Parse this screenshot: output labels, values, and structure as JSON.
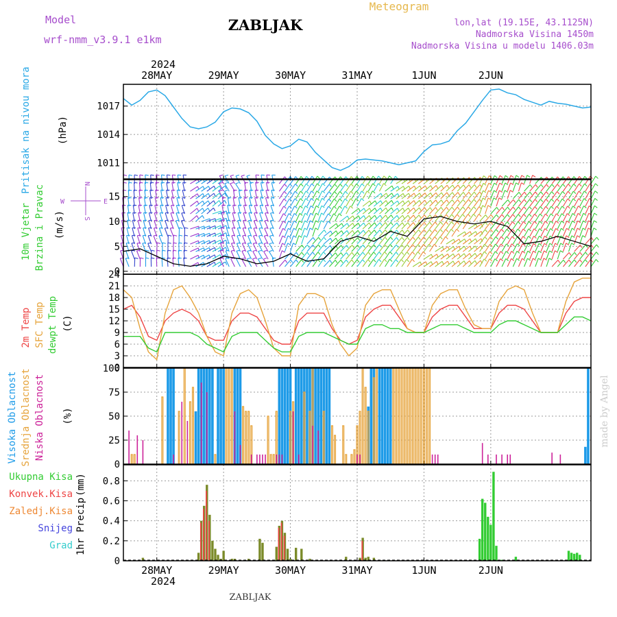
{
  "header": {
    "model_label": "Model",
    "model_name": "wrf-nmm_v3.9.1 e1km",
    "station": "ZABLJAK",
    "meteogram": "Meteogram",
    "coords": "lon,lat (19.15E, 43.1125N)",
    "elevation": "Nadmorska Visina 1450m",
    "model_elevation": "Nadmorska Visina u modelu 1406.03m",
    "year_top": "2024",
    "year_bottom": "2024",
    "footer": "ZABLJAK",
    "watermark": "made by Angel"
  },
  "colors": {
    "pressure": "#29a8e6",
    "precip_total": "#33cc33",
    "precip_conv": "#ee4444",
    "precip_frozen": "#ee8833",
    "precip_snow": "#4444dd",
    "precip_hail": "#33cccc",
    "temp2m": "#ee4444",
    "tsfc": "#e6a33a",
    "dewpt": "#33cc33",
    "cloud_high": "#1e9be8",
    "cloud_mid": "#e6a33a",
    "cloud_low": "#cc2299",
    "purple": "#a64dcc"
  },
  "chart_data": [
    {
      "id": "pressure",
      "type": "line",
      "ylabel": "Pritisak na nivou mora",
      "unit": "(hPa)",
      "yticks": [
        1011,
        1014,
        1017
      ],
      "ylim": [
        1009.3,
        1019.3
      ],
      "x_dates": [
        "28MAY",
        "29MAY",
        "30MAY",
        "31MAY",
        "1JUN",
        "2JUN"
      ],
      "series": [
        {
          "x": [
            0,
            3,
            6,
            9,
            12,
            15,
            18,
            21,
            24,
            27,
            30,
            33,
            36,
            39,
            42,
            45,
            48,
            51,
            54,
            57,
            60,
            63,
            66,
            69,
            72,
            75,
            78,
            81,
            84,
            87,
            90,
            93,
            96,
            99,
            102,
            105,
            108,
            111,
            114,
            117,
            120,
            123,
            126,
            129,
            132,
            135,
            138,
            141,
            144,
            147,
            150,
            153,
            156,
            159,
            162,
            165,
            168
          ],
          "y": [
            1017.8,
            1017.1,
            1017.6,
            1018.5,
            1018.7,
            1018.1,
            1016.9,
            1015.7,
            1014.8,
            1014.6,
            1014.8,
            1015.3,
            1016.4,
            1016.8,
            1016.7,
            1016.3,
            1015.4,
            1013.9,
            1013.0,
            1012.5,
            1012.8,
            1013.5,
            1013.2,
            1012.1,
            1011.3,
            1010.5,
            1010.2,
            1010.6,
            1011.3,
            1011.4,
            1011.3,
            1011.2,
            1011.0,
            1010.8,
            1011.0,
            1011.2,
            1012.2,
            1012.9,
            1013.0,
            1013.3,
            1014.4,
            1015.2,
            1016.4,
            1017.6,
            1018.7,
            1018.8,
            1018.4,
            1018.2,
            1017.7,
            1017.4,
            1017.1,
            1017.5,
            1017.3,
            1017.2,
            1017.0,
            1016.8,
            1016.9
          ]
        }
      ]
    },
    {
      "id": "wind",
      "type": "line",
      "ylabel": "10m Vjetar Brzina i Pravac",
      "unit": "(m/s)",
      "compass": {
        "n": "N",
        "w": "W",
        "e": "E",
        "s": "S"
      },
      "yticks": [
        0,
        5,
        10,
        15
      ],
      "ylim": [
        -0.6,
        18.4
      ],
      "series": [
        {
          "name": "speed",
          "x": [
            0,
            6,
            12,
            18,
            24,
            30,
            36,
            42,
            48,
            54,
            60,
            66,
            72,
            78,
            84,
            90,
            96,
            102,
            108,
            114,
            120,
            126,
            132,
            138,
            144,
            150,
            156,
            162,
            168
          ],
          "y": [
            4,
            4.5,
            3,
            1.5,
            1,
            1.5,
            3,
            2.5,
            1.5,
            2,
            3.5,
            2,
            2.5,
            6,
            7,
            6,
            8,
            7,
            10.5,
            11,
            10,
            9.5,
            10,
            9,
            5.5,
            6,
            7,
            6,
            5
          ]
        }
      ]
    },
    {
      "id": "temperature",
      "type": "line",
      "ylabel_lines": [
        "2m Temp",
        "SFC Temp",
        "dewpt Temp"
      ],
      "unit": "(C)",
      "yticks": [
        0,
        3,
        6,
        9,
        12,
        15,
        18,
        21,
        24
      ],
      "ylim": [
        0,
        24
      ],
      "x": [
        0,
        3,
        6,
        9,
        12,
        15,
        18,
        21,
        24,
        27,
        30,
        33,
        36,
        39,
        42,
        45,
        48,
        51,
        54,
        57,
        60,
        63,
        66,
        69,
        72,
        75,
        78,
        81,
        84,
        87,
        90,
        93,
        96,
        99,
        102,
        105,
        108,
        111,
        114,
        117,
        120,
        123,
        126,
        129,
        132,
        135,
        138,
        141,
        144,
        147,
        150,
        153,
        156,
        159,
        162,
        165,
        168
      ],
      "series": [
        {
          "name": "2m Temp",
          "y": [
            15,
            16,
            13,
            8,
            7,
            12,
            14,
            15,
            14,
            12,
            8,
            7,
            7,
            12,
            14,
            14,
            13,
            10,
            7,
            6,
            6,
            12,
            14,
            14,
            14,
            10,
            7,
            6,
            7,
            13,
            15,
            16,
            16,
            13,
            10,
            9,
            9,
            13,
            15,
            16,
            16,
            13,
            10,
            10,
            10,
            14,
            16,
            16,
            15,
            12,
            9,
            9,
            9,
            14,
            17,
            18,
            18
          ]
        },
        {
          "name": "SFC Temp",
          "y": [
            20,
            18,
            10,
            4,
            2,
            14,
            20,
            21,
            18,
            14,
            8,
            4,
            3,
            14,
            19,
            20,
            18,
            12,
            5,
            3,
            3,
            16,
            19,
            19,
            18,
            11,
            6,
            3,
            5,
            16,
            19,
            20,
            20,
            15,
            10,
            9,
            9,
            16,
            19,
            20,
            20,
            15,
            11,
            10,
            10,
            17,
            20,
            21,
            20,
            14,
            9,
            9,
            9,
            17,
            22,
            23,
            23
          ]
        },
        {
          "name": "dewpt Temp",
          "y": [
            8,
            8,
            8,
            5,
            4,
            9,
            9,
            9,
            9,
            8,
            6,
            5,
            4,
            8,
            9,
            9,
            9,
            7,
            5,
            4,
            4,
            8,
            9,
            9,
            9,
            8,
            7,
            6,
            6,
            10,
            11,
            11,
            10,
            10,
            9,
            9,
            9,
            10,
            11,
            11,
            11,
            10,
            9,
            9,
            9,
            11,
            12,
            12,
            11,
            10,
            9,
            9,
            9,
            11,
            13,
            13,
            12
          ]
        }
      ]
    },
    {
      "id": "cloud",
      "type": "bar",
      "ylabel_lines": [
        "Visoka Oblacnost",
        "Srednja Oblacnost",
        "Niska Oblacnost"
      ],
      "unit": "(%)",
      "yticks": [
        0,
        25,
        50,
        75,
        100
      ],
      "ylim": [
        0,
        100
      ],
      "series": [
        {
          "name": "Visoka Oblacnost",
          "x": [
            16,
            17,
            18,
            26,
            27,
            28,
            29,
            30,
            31,
            32,
            34,
            35,
            36,
            40,
            41,
            42,
            56,
            57,
            58,
            59,
            60,
            62,
            63,
            64,
            65,
            66,
            67,
            68,
            69,
            70,
            71,
            72,
            73,
            74,
            88,
            89,
            90,
            92,
            93,
            94,
            95,
            96,
            166,
            167
          ],
          "y": [
            100,
            100,
            100,
            55,
            100,
            100,
            100,
            100,
            100,
            100,
            100,
            100,
            100,
            100,
            100,
            100,
            100,
            100,
            100,
            100,
            100,
            100,
            100,
            100,
            100,
            100,
            100,
            100,
            100,
            100,
            100,
            100,
            100,
            100,
            60,
            100,
            100,
            100,
            100,
            100,
            100,
            100,
            18,
            100
          ]
        },
        {
          "name": "Srednja Oblacnost",
          "x": [
            3,
            4,
            14,
            20,
            22,
            24,
            25,
            33,
            37,
            38,
            39,
            43,
            44,
            45,
            46,
            52,
            53,
            54,
            55,
            60,
            61,
            65,
            67,
            68,
            72,
            75,
            76,
            79,
            80,
            82,
            83,
            84,
            85,
            86,
            87,
            88,
            90,
            91,
            97,
            98,
            99,
            100,
            101,
            102,
            103,
            104,
            105,
            106,
            107,
            108,
            109,
            110
          ],
          "y": [
            10,
            10,
            70,
            55,
            100,
            65,
            80,
            10,
            100,
            100,
            100,
            60,
            55,
            55,
            40,
            50,
            10,
            10,
            55,
            55,
            65,
            75,
            55,
            100,
            55,
            40,
            30,
            40,
            10,
            10,
            15,
            40,
            55,
            100,
            80,
            55,
            90,
            100,
            100,
            100,
            100,
            100,
            100,
            100,
            100,
            100,
            100,
            100,
            100,
            100,
            100,
            100
          ]
        },
        {
          "name": "Niska Oblacnost",
          "x": [
            2,
            5,
            7,
            18,
            21,
            23,
            28,
            30,
            40,
            42,
            46,
            48,
            49,
            50,
            51,
            55,
            56,
            57,
            61,
            63,
            68,
            70,
            84,
            85,
            111,
            112,
            113,
            129,
            131,
            134,
            136,
            138,
            139,
            154,
            157
          ],
          "y": [
            35,
            30,
            25,
            10,
            65,
            45,
            85,
            75,
            55,
            20,
            10,
            10,
            10,
            10,
            10,
            10,
            10,
            10,
            55,
            10,
            40,
            35,
            10,
            10,
            10,
            10,
            10,
            22,
            10,
            10,
            10,
            10,
            10,
            12,
            10
          ]
        }
      ]
    },
    {
      "id": "precip",
      "type": "bar",
      "ylabel": "1hr Precip",
      "unit": "(mm)",
      "legend": [
        "Ukupna Kisa",
        "Konvek.Kisa",
        "Zaledj.Kisa",
        "Snijeg",
        "Grad"
      ],
      "yticks": [
        0,
        0.2,
        0.4,
        0.6,
        0.8
      ],
      "ylim": [
        0,
        0.96
      ],
      "series": [
        {
          "name": "Ukupna Kisa",
          "x": [
            7,
            27,
            28,
            29,
            30,
            31,
            32,
            33,
            34,
            35,
            36,
            39,
            40,
            45,
            49,
            50,
            55,
            56,
            57,
            58,
            59,
            60,
            62,
            64,
            67,
            80,
            85,
            86,
            87,
            88,
            90,
            92,
            128,
            129,
            130,
            131,
            132,
            133,
            134,
            136,
            141,
            160,
            161,
            162,
            163,
            164
          ],
          "y": [
            0.03,
            0.08,
            0.4,
            0.55,
            0.76,
            0.46,
            0.2,
            0.12,
            0.06,
            0.02,
            0.1,
            0.02,
            0.02,
            0.02,
            0.22,
            0.18,
            0.14,
            0.35,
            0.4,
            0.28,
            0.12,
            0.02,
            0.13,
            0.12,
            0.02,
            0.04,
            0.03,
            0.23,
            0.03,
            0.04,
            0.03,
            0.01,
            0.22,
            0.62,
            0.58,
            0.44,
            0.36,
            0.89,
            0.15,
            0.01,
            0.04,
            0.1,
            0.08,
            0.07,
            0.08,
            0.06
          ]
        },
        {
          "name": "Konvek.Kisa",
          "x": [
            28,
            29,
            30,
            31,
            56,
            57,
            58,
            86
          ],
          "y": [
            0.38,
            0.52,
            0.7,
            0.4,
            0.33,
            0.38,
            0.25,
            0.2
          ]
        }
      ]
    }
  ]
}
